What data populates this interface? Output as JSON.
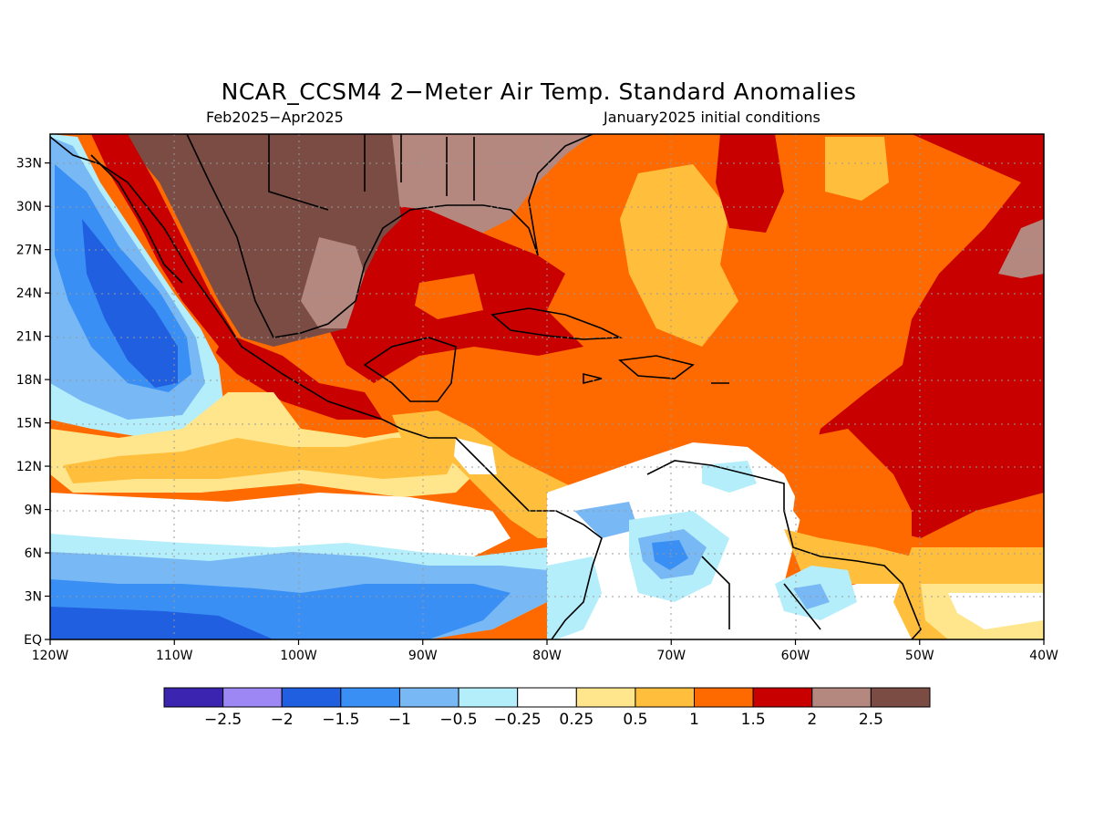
{
  "title": "NCAR_CCSM4 2−Meter Air Temp. Standard Anomalies",
  "period": "Feb2025−Apr2025",
  "init": "January2025 initial conditions",
  "lon_labels": [
    "120W",
    "110W",
    "100W",
    "90W",
    "80W",
    "70W",
    "60W",
    "50W",
    "40W"
  ],
  "lat_labels": [
    "EQ",
    "3N",
    "6N",
    "9N",
    "12N",
    "15N",
    "18N",
    "21N",
    "24N",
    "27N",
    "30N",
    "33N"
  ],
  "colorbar": {
    "colors": [
      "#3a24b0",
      "#9c87f5",
      "#1f5fe0",
      "#3a8ff5",
      "#78b8f5",
      "#b4eefb",
      "#ffffff",
      "#ffe68c",
      "#ffbf3c",
      "#ff6a00",
      "#c80000",
      "#b4887e",
      "#7a4c44"
    ],
    "labels": [
      "−2.5",
      "−2",
      "−1.5",
      "−1",
      "−0.5",
      "−0.25",
      "0.25",
      "0.5",
      "1",
      "1.5",
      "2",
      "2.5"
    ]
  }
}
